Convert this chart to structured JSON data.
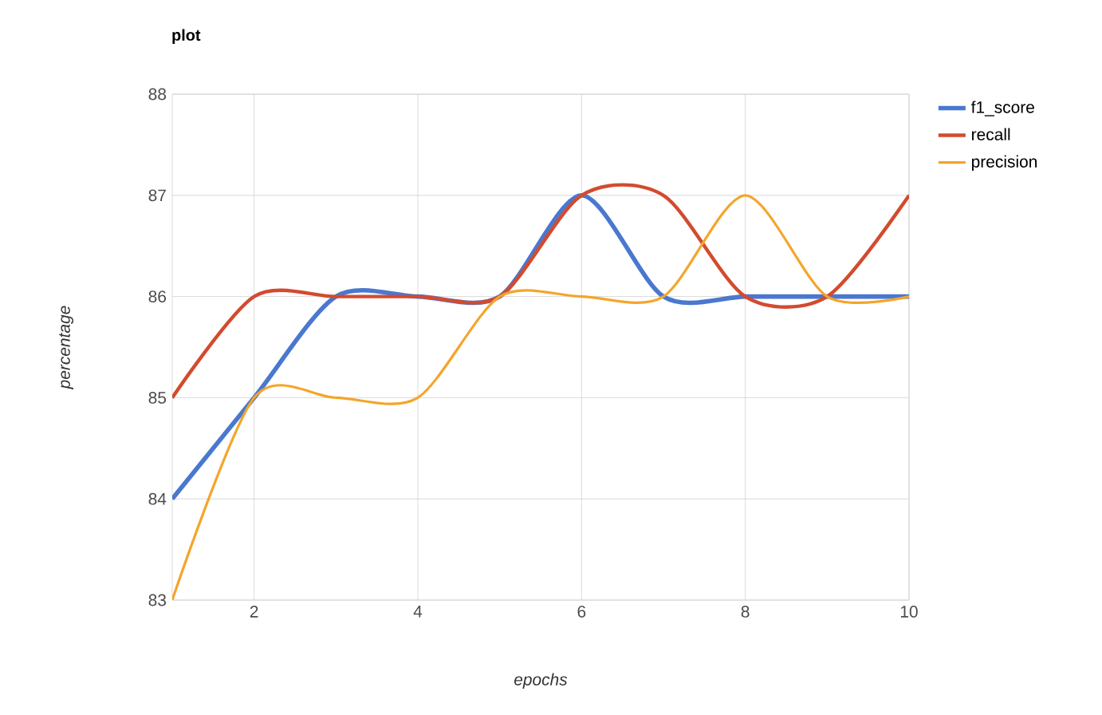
{
  "chart_data": {
    "type": "line",
    "title": "plot",
    "xlabel": "epochs",
    "ylabel": "percentage",
    "x": [
      1,
      2,
      3,
      4,
      5,
      6,
      7,
      8,
      9,
      10
    ],
    "series": [
      {
        "name": "f1_score",
        "color": "#4a78cf",
        "values": [
          84,
          85,
          86,
          86,
          86,
          87,
          86,
          86,
          86,
          86
        ]
      },
      {
        "name": "recall",
        "color": "#d24b2e",
        "values": [
          85,
          86,
          86,
          86,
          86,
          87,
          87,
          86,
          86,
          87
        ]
      },
      {
        "name": "precision",
        "color": "#f4a52a",
        "values": [
          83,
          85,
          85,
          85,
          86,
          86,
          86,
          87,
          86,
          86
        ]
      }
    ],
    "xlim": [
      1,
      10
    ],
    "xticks": [
      2,
      4,
      6,
      8,
      10
    ],
    "ylim": [
      83,
      88
    ],
    "yticks": [
      83,
      84,
      85,
      86,
      87,
      88
    ],
    "grid": true,
    "legend": "right"
  }
}
